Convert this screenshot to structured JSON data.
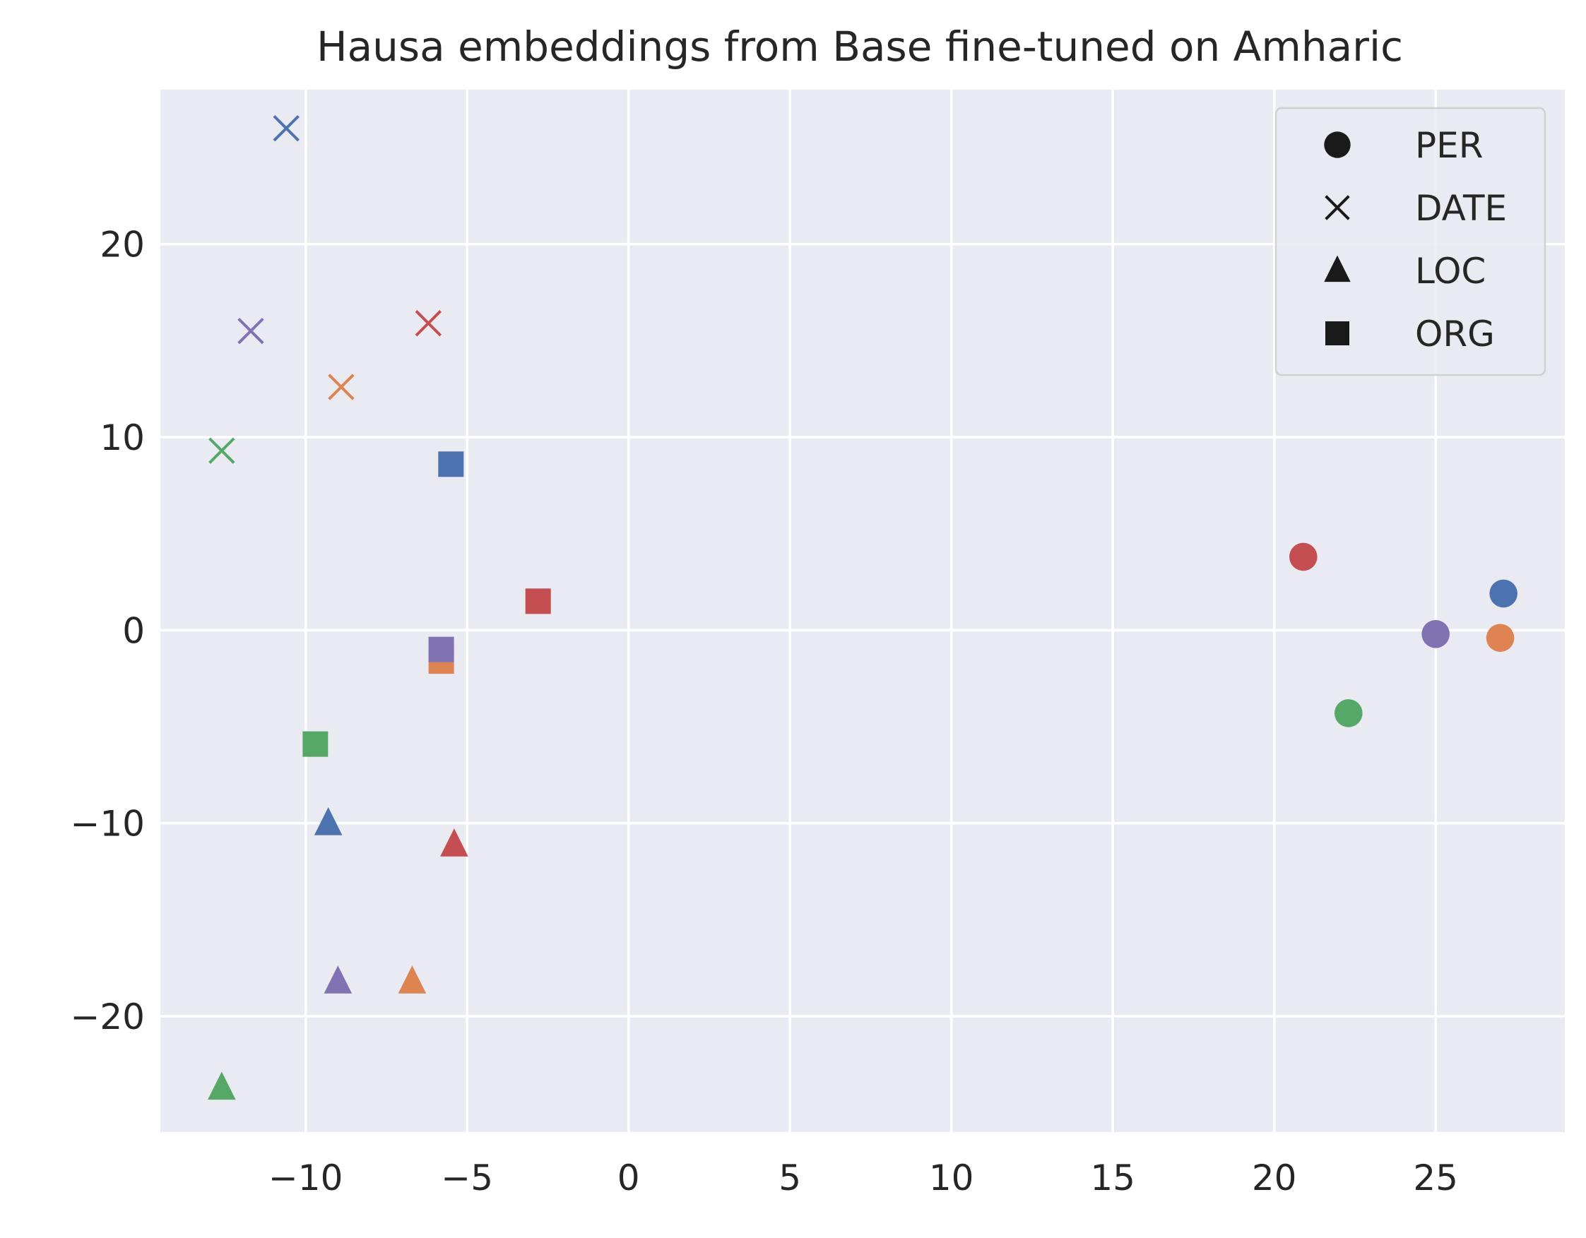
{
  "chart_data": {
    "type": "scatter",
    "title": "Hausa embeddings from Base fine-tuned on Amharic",
    "xlabel": "",
    "ylabel": "",
    "xlim": [
      -14.5,
      29
    ],
    "ylim": [
      -26,
      28
    ],
    "xticks": [
      -10,
      -5,
      0,
      5,
      10,
      15,
      20,
      25
    ],
    "yticks": [
      -20,
      -10,
      0,
      10,
      20
    ],
    "xtick_labels": [
      "−10",
      "−5",
      "0",
      "5",
      "10",
      "15",
      "20",
      "25"
    ],
    "ytick_labels": [
      "−20",
      "−10",
      "0",
      "10",
      "20"
    ],
    "grid": true,
    "background": "#eaeaf2",
    "legend": {
      "placement": "top-right",
      "entries": [
        {
          "label": "PER",
          "marker": "circle"
        },
        {
          "label": "DATE",
          "marker": "x"
        },
        {
          "label": "LOC",
          "marker": "triangle"
        },
        {
          "label": "ORG",
          "marker": "square"
        }
      ]
    },
    "colors": {
      "blue": "#4c72b0",
      "orange": "#dd8452",
      "green": "#55a868",
      "red": "#c44e52",
      "purple": "#8172b3"
    },
    "points": [
      {
        "x": -10.6,
        "y": 26.0,
        "marker": "x",
        "color": "blue"
      },
      {
        "x": -11.7,
        "y": 15.5,
        "marker": "x",
        "color": "purple"
      },
      {
        "x": -6.2,
        "y": 15.9,
        "marker": "x",
        "color": "red"
      },
      {
        "x": -8.9,
        "y": 12.6,
        "marker": "x",
        "color": "orange"
      },
      {
        "x": -12.6,
        "y": 9.3,
        "marker": "x",
        "color": "green"
      },
      {
        "x": -5.5,
        "y": 8.6,
        "marker": "square",
        "color": "blue"
      },
      {
        "x": -2.8,
        "y": 1.5,
        "marker": "square",
        "color": "red"
      },
      {
        "x": -5.8,
        "y": -1.6,
        "marker": "square",
        "color": "orange"
      },
      {
        "x": -5.8,
        "y": -1.0,
        "marker": "square",
        "color": "purple"
      },
      {
        "x": -9.7,
        "y": -5.9,
        "marker": "square",
        "color": "green"
      },
      {
        "x": -9.3,
        "y": -10.0,
        "marker": "triangle",
        "color": "blue"
      },
      {
        "x": -5.4,
        "y": -11.1,
        "marker": "triangle",
        "color": "red"
      },
      {
        "x": -9.0,
        "y": -18.2,
        "marker": "triangle",
        "color": "purple"
      },
      {
        "x": -6.7,
        "y": -18.2,
        "marker": "triangle",
        "color": "orange"
      },
      {
        "x": -12.6,
        "y": -23.7,
        "marker": "triangle",
        "color": "green"
      },
      {
        "x": 20.9,
        "y": 3.8,
        "marker": "circle",
        "color": "red"
      },
      {
        "x": 27.1,
        "y": 1.9,
        "marker": "circle",
        "color": "blue"
      },
      {
        "x": 25.0,
        "y": -0.2,
        "marker": "circle",
        "color": "purple"
      },
      {
        "x": 27.0,
        "y": -0.4,
        "marker": "circle",
        "color": "orange"
      },
      {
        "x": 22.3,
        "y": -4.3,
        "marker": "circle",
        "color": "green"
      }
    ]
  }
}
